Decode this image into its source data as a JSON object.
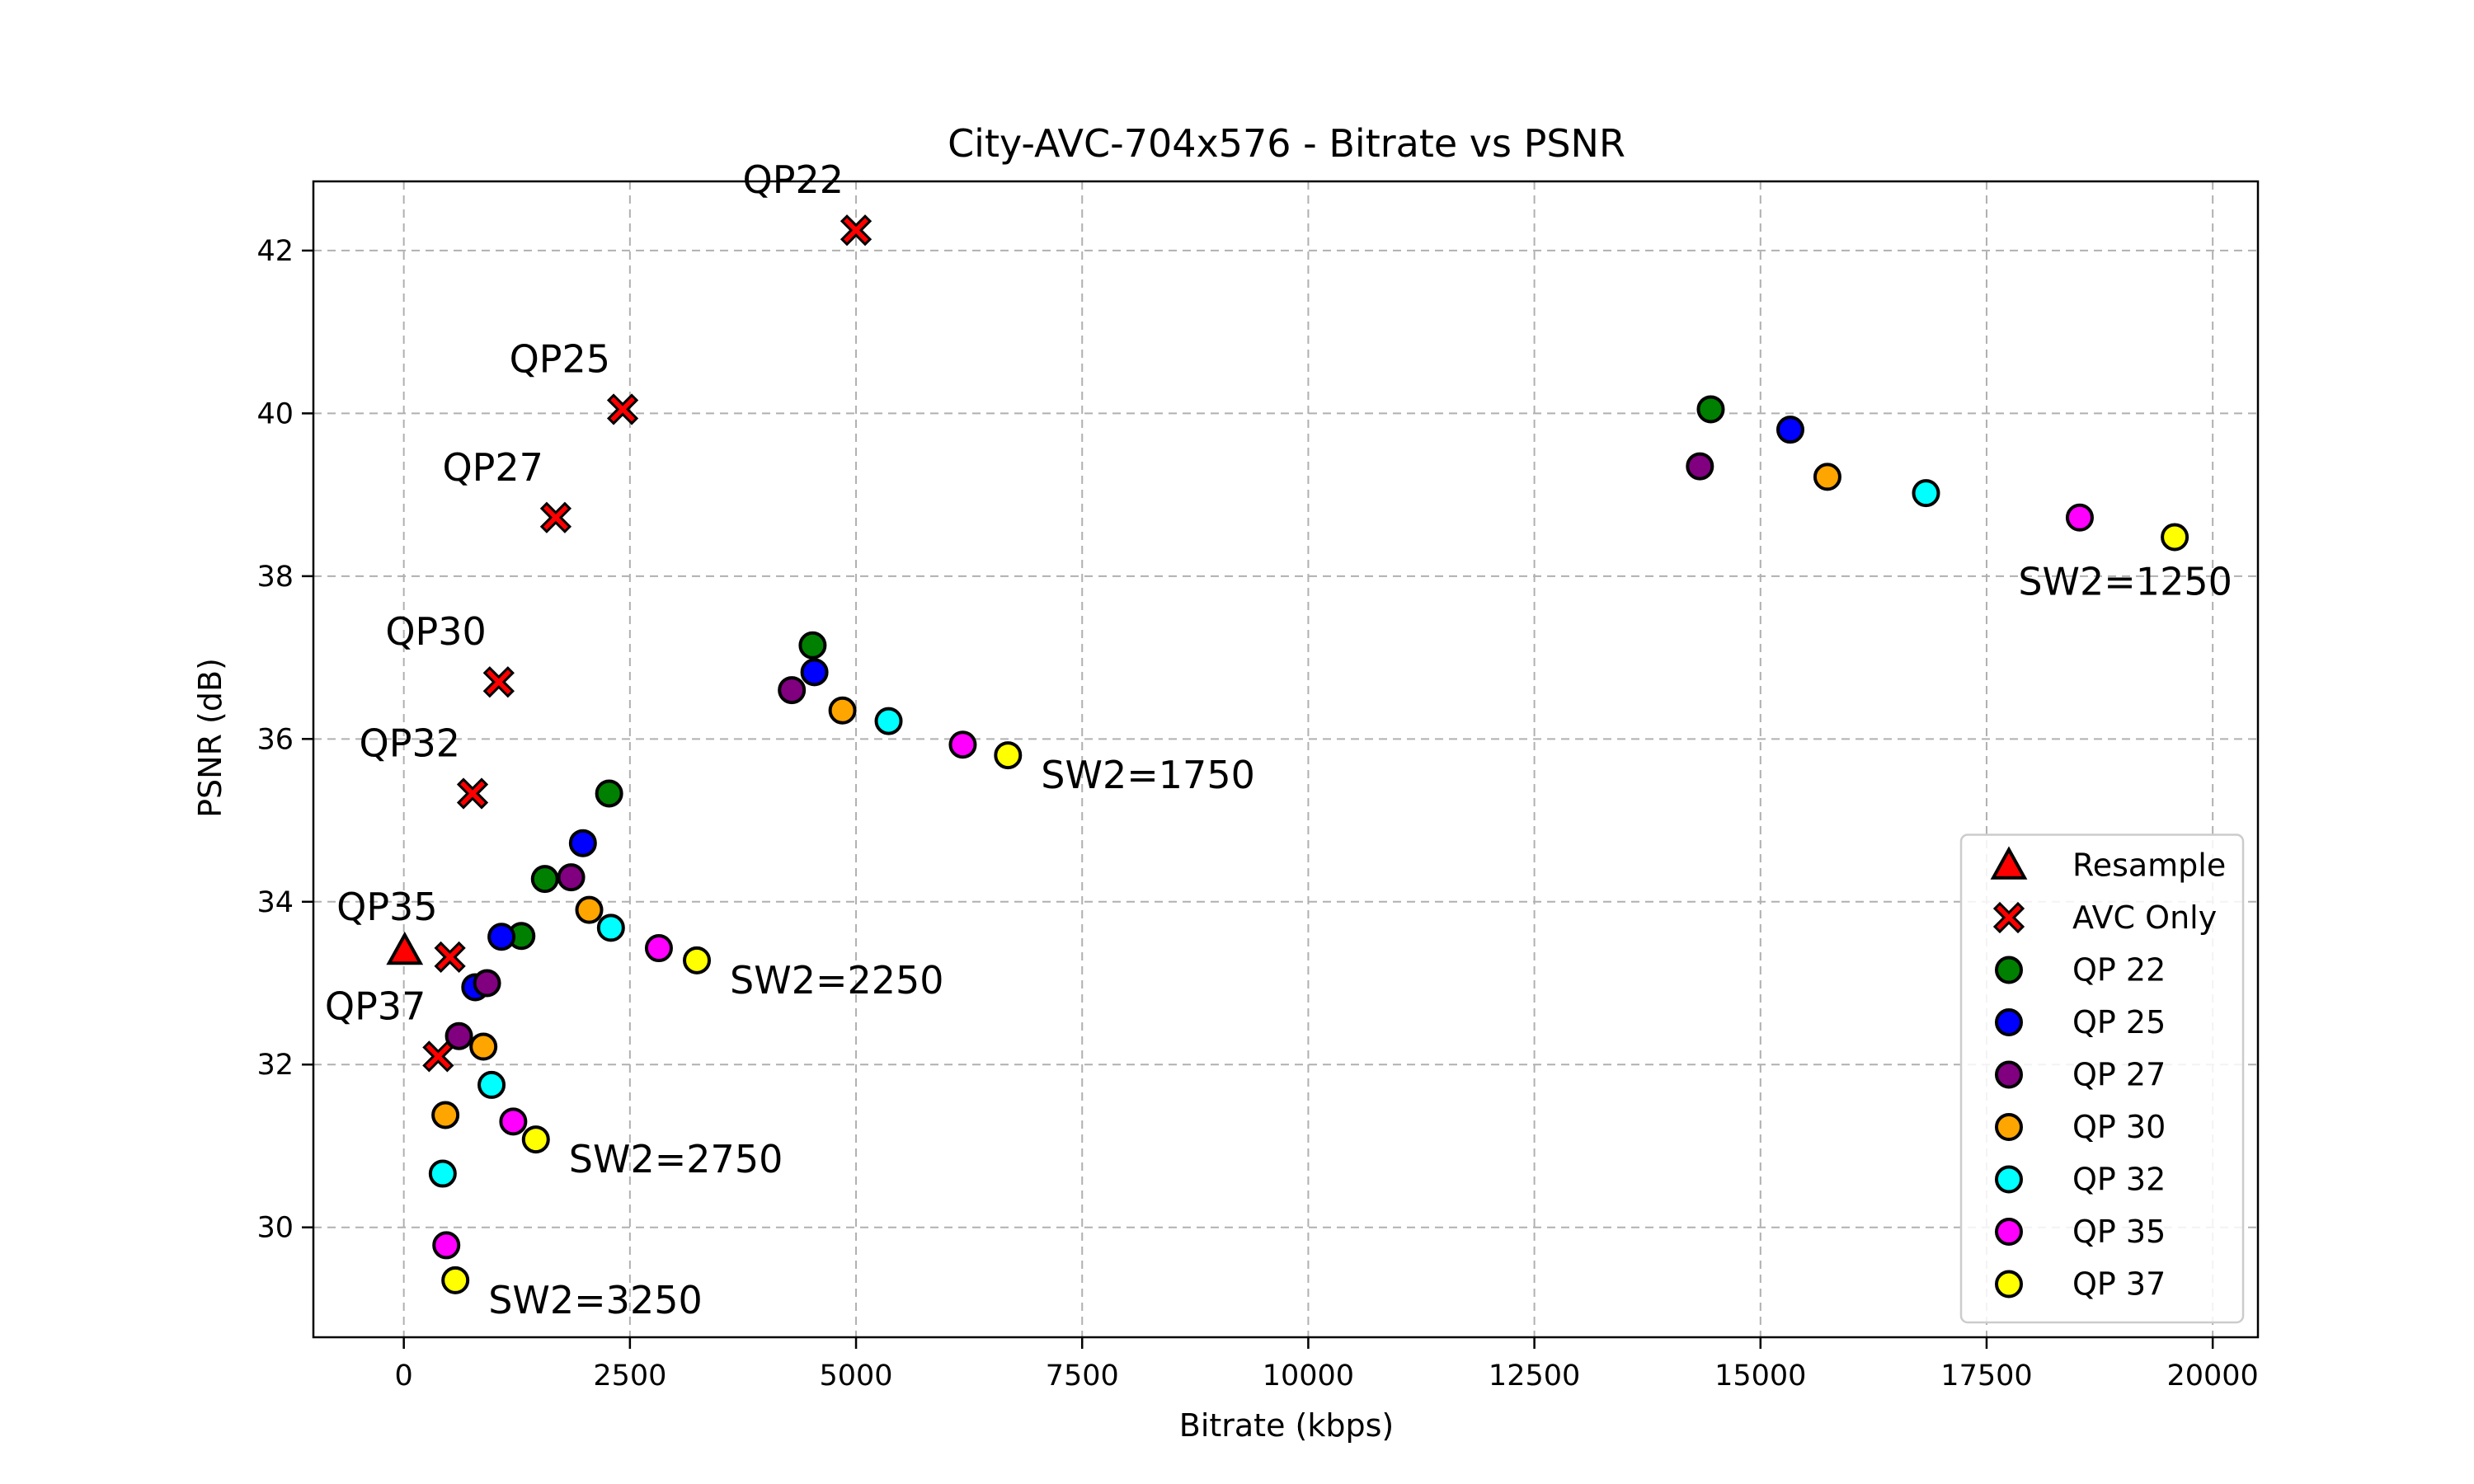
{
  "chart_data": {
    "type": "scatter",
    "title": "City-AVC-704x576 - Bitrate vs PSNR",
    "xlabel": "Bitrate (kbps)",
    "ylabel": "PSNR (dB)",
    "xlim": [
      -1000,
      20500
    ],
    "ylim": [
      28.65,
      42.85
    ],
    "xticks": [
      0,
      2500,
      5000,
      7500,
      10000,
      12500,
      15000,
      17500,
      20000
    ],
    "yticks": [
      30,
      32,
      34,
      36,
      38,
      40,
      42
    ],
    "grid": true,
    "legend_position": "lower-right",
    "series": [
      {
        "name": "Resample",
        "marker": "triangle",
        "color": "#ff0000",
        "points": [
          [
            10,
            33.4
          ]
        ]
      },
      {
        "name": "AVC Only",
        "marker": "x",
        "color": "#ff0000",
        "points": [
          [
            5000,
            42.25
          ],
          [
            2420,
            40.05
          ],
          [
            1680,
            38.72
          ],
          [
            1050,
            36.7
          ],
          [
            760,
            35.33
          ],
          [
            510,
            33.32
          ],
          [
            380,
            32.1
          ]
        ]
      },
      {
        "name": "QP 22",
        "marker": "circle",
        "color": "#008000",
        "points": [
          [
            14450,
            40.05
          ],
          [
            4520,
            37.15
          ],
          [
            2270,
            35.33
          ],
          [
            1560,
            34.28
          ],
          [
            1300,
            33.58
          ]
        ]
      },
      {
        "name": "QP 25",
        "marker": "circle",
        "color": "#0000ff",
        "points": [
          [
            15330,
            39.8
          ],
          [
            4540,
            36.82
          ],
          [
            1980,
            34.72
          ],
          [
            1080,
            33.57
          ],
          [
            790,
            32.95
          ]
        ]
      },
      {
        "name": "QP 27",
        "marker": "circle",
        "color": "#800080",
        "points": [
          [
            14330,
            39.35
          ],
          [
            4290,
            36.6
          ],
          [
            1850,
            34.3
          ],
          [
            920,
            33.0
          ],
          [
            610,
            32.35
          ]
        ]
      },
      {
        "name": "QP 30",
        "marker": "circle",
        "color": "#ffa500",
        "points": [
          [
            15740,
            39.22
          ],
          [
            4850,
            36.35
          ],
          [
            2050,
            33.9
          ],
          [
            880,
            32.22
          ],
          [
            460,
            31.38
          ]
        ]
      },
      {
        "name": "QP 32",
        "marker": "circle",
        "color": "#00ffff",
        "points": [
          [
            16830,
            39.02
          ],
          [
            5360,
            36.22
          ],
          [
            2290,
            33.68
          ],
          [
            970,
            31.75
          ],
          [
            430,
            30.66
          ]
        ]
      },
      {
        "name": "QP 35",
        "marker": "circle",
        "color": "#ff00ff",
        "points": [
          [
            18530,
            38.72
          ],
          [
            6180,
            35.93
          ],
          [
            2820,
            33.43
          ],
          [
            1210,
            31.3
          ],
          [
            470,
            29.78
          ]
        ]
      },
      {
        "name": "QP 37",
        "marker": "circle",
        "color": "#ffff00",
        "points": [
          [
            19580,
            38.48
          ],
          [
            6680,
            35.8
          ],
          [
            3240,
            33.28
          ],
          [
            1460,
            31.08
          ],
          [
            570,
            29.35
          ]
        ]
      }
    ],
    "annotations": [
      {
        "text": "QP22",
        "x": 5000,
        "y": 42.25,
        "anchor": "end",
        "dx": -15,
        "dy": -45
      },
      {
        "text": "QP25",
        "x": 2420,
        "y": 40.05,
        "anchor": "end",
        "dx": -15,
        "dy": -45
      },
      {
        "text": "QP27",
        "x": 1680,
        "y": 38.72,
        "anchor": "end",
        "dx": -15,
        "dy": -45
      },
      {
        "text": "QP30",
        "x": 1050,
        "y": 36.7,
        "anchor": "end",
        "dx": -15,
        "dy": -45
      },
      {
        "text": "QP32",
        "x": 760,
        "y": 35.33,
        "anchor": "end",
        "dx": -15,
        "dy": -45
      },
      {
        "text": "QP35",
        "x": 510,
        "y": 33.32,
        "anchor": "end",
        "dx": -15,
        "dy": -45
      },
      {
        "text": "QP37",
        "x": 380,
        "y": 32.1,
        "anchor": "end",
        "dx": -15,
        "dy": -45
      },
      {
        "text": "SW2=1250",
        "x": 19580,
        "y": 38.48,
        "anchor": "middle",
        "dx": -60,
        "dy": 70
      },
      {
        "text": "SW2=1750",
        "x": 6680,
        "y": 35.8,
        "anchor": "start",
        "dx": 40,
        "dy": 40
      },
      {
        "text": "SW2=2250",
        "x": 3240,
        "y": 33.28,
        "anchor": "start",
        "dx": 40,
        "dy": 40
      },
      {
        "text": "SW2=2750",
        "x": 1460,
        "y": 31.08,
        "anchor": "start",
        "dx": 40,
        "dy": 40
      },
      {
        "text": "SW2=3250",
        "x": 570,
        "y": 29.35,
        "anchor": "start",
        "dx": 40,
        "dy": 40
      }
    ]
  }
}
